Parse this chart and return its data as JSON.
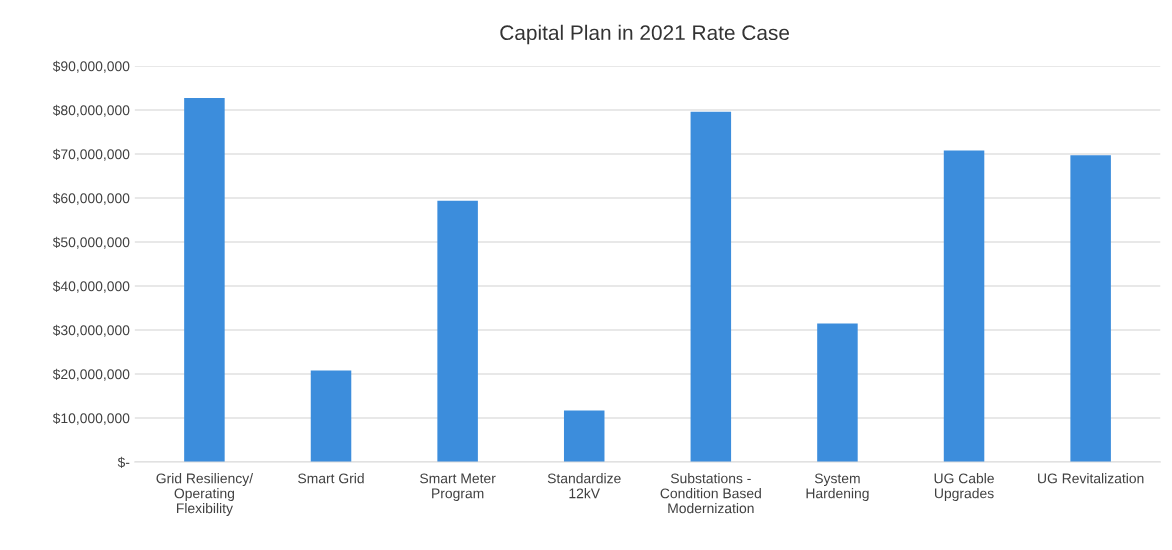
{
  "chart_data": {
    "type": "bar",
    "title": "Capital Plan in 2021 Rate Case",
    "categories": [
      "Grid Resiliency/\nOperating\nFlexibility",
      "Smart Grid",
      "Smart Meter\nProgram",
      "Standardize\n12kV",
      "Substations -\nCondition Based\nModernization",
      "System\nHardening",
      "UG Cable\nUpgrades",
      "UG Revitalization"
    ],
    "values": [
      82700000,
      20800000,
      59400000,
      11700000,
      79600000,
      31500000,
      70800000,
      69700000
    ],
    "color": "#3c8ddc",
    "ylim": [
      0,
      90000000
    ],
    "yticks": [
      {
        "value": 0,
        "label": "$-"
      },
      {
        "value": 10000000,
        "label": "$10,000,000"
      },
      {
        "value": 20000000,
        "label": "$20,000,000"
      },
      {
        "value": 30000000,
        "label": "$30,000,000"
      },
      {
        "value": 40000000,
        "label": "$40,000,000"
      },
      {
        "value": 50000000,
        "label": "$50,000,000"
      },
      {
        "value": 60000000,
        "label": "$60,000,000"
      },
      {
        "value": 70000000,
        "label": "$70,000,000"
      },
      {
        "value": 80000000,
        "label": "$80,000,000"
      },
      {
        "value": 90000000,
        "label": "$90,000,000"
      }
    ],
    "grid": "y"
  }
}
